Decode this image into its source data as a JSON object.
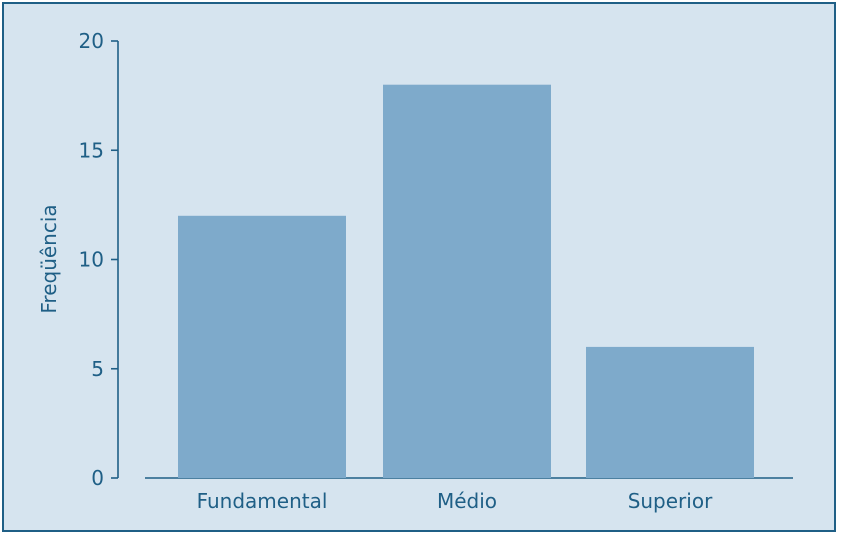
{
  "chart_data": {
    "type": "bar",
    "title": "",
    "xlabel": "",
    "ylabel": "Freqüência",
    "categories": [
      "Fundamental",
      "Médio",
      "Superior"
    ],
    "values": [
      12,
      18,
      6
    ],
    "ylim": [
      0,
      20
    ],
    "yticks": [
      "0",
      "5",
      "10",
      "15",
      "20"
    ],
    "grid": false,
    "colors": {
      "bar": "#7eaacb",
      "axis": "#1f5f86",
      "background": "#d6e4ef",
      "border": "#1f5f86"
    }
  }
}
